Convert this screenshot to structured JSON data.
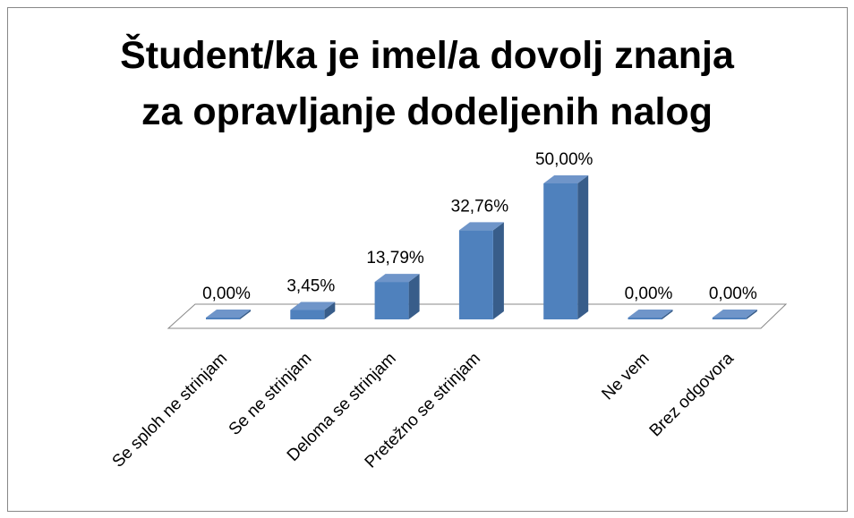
{
  "chart_data": {
    "type": "bar3d",
    "title": "Študent/ka je imel/a dovolj znanja za opravljanje dodeljenih nalog",
    "categories": [
      "Se sploh ne strinjam",
      "Se ne strinjam",
      "Deloma se strinjam",
      "Pretežno se strinjam",
      null,
      "Ne vem",
      "Brez odgovora"
    ],
    "values": [
      0,
      3.45,
      13.79,
      32.76,
      50,
      0,
      0
    ],
    "value_labels": [
      "0,00%",
      "3,45%",
      "13,79%",
      "32,76%",
      "50,00%",
      "0,00%",
      "0,00%"
    ],
    "color": "#4f81bd"
  }
}
